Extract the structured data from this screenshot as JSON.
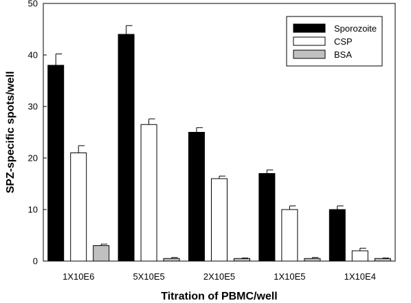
{
  "chart_data": {
    "type": "bar",
    "xlabel": "Titration of PBMC/well",
    "ylabel": "SPZ-specific spots/well",
    "categories": [
      "1X10E6",
      "5X10E5",
      "2X10E5",
      "1X10E5",
      "1X10E4"
    ],
    "ylim": [
      0,
      50
    ],
    "yticks": [
      0,
      10,
      20,
      30,
      40,
      50
    ],
    "grid": false,
    "legend_position": "top-right",
    "series": [
      {
        "name": "Sporozoite",
        "color": "#000000",
        "values": [
          38,
          44,
          25,
          17,
          10
        ],
        "errors": [
          2.2,
          1.7,
          0.9,
          0.7,
          0.7
        ]
      },
      {
        "name": "CSP",
        "color": "#ffffff",
        "values": [
          21,
          26.5,
          16,
          10,
          2
        ],
        "errors": [
          1.4,
          1.1,
          0.5,
          0.7,
          0.5
        ]
      },
      {
        "name": "BSA",
        "color": "#c0c0c0",
        "values": [
          3,
          0.5,
          0.5,
          0.5,
          0.5
        ],
        "errors": [
          0.3,
          0.2,
          0.1,
          0.2,
          0.1
        ]
      }
    ]
  }
}
